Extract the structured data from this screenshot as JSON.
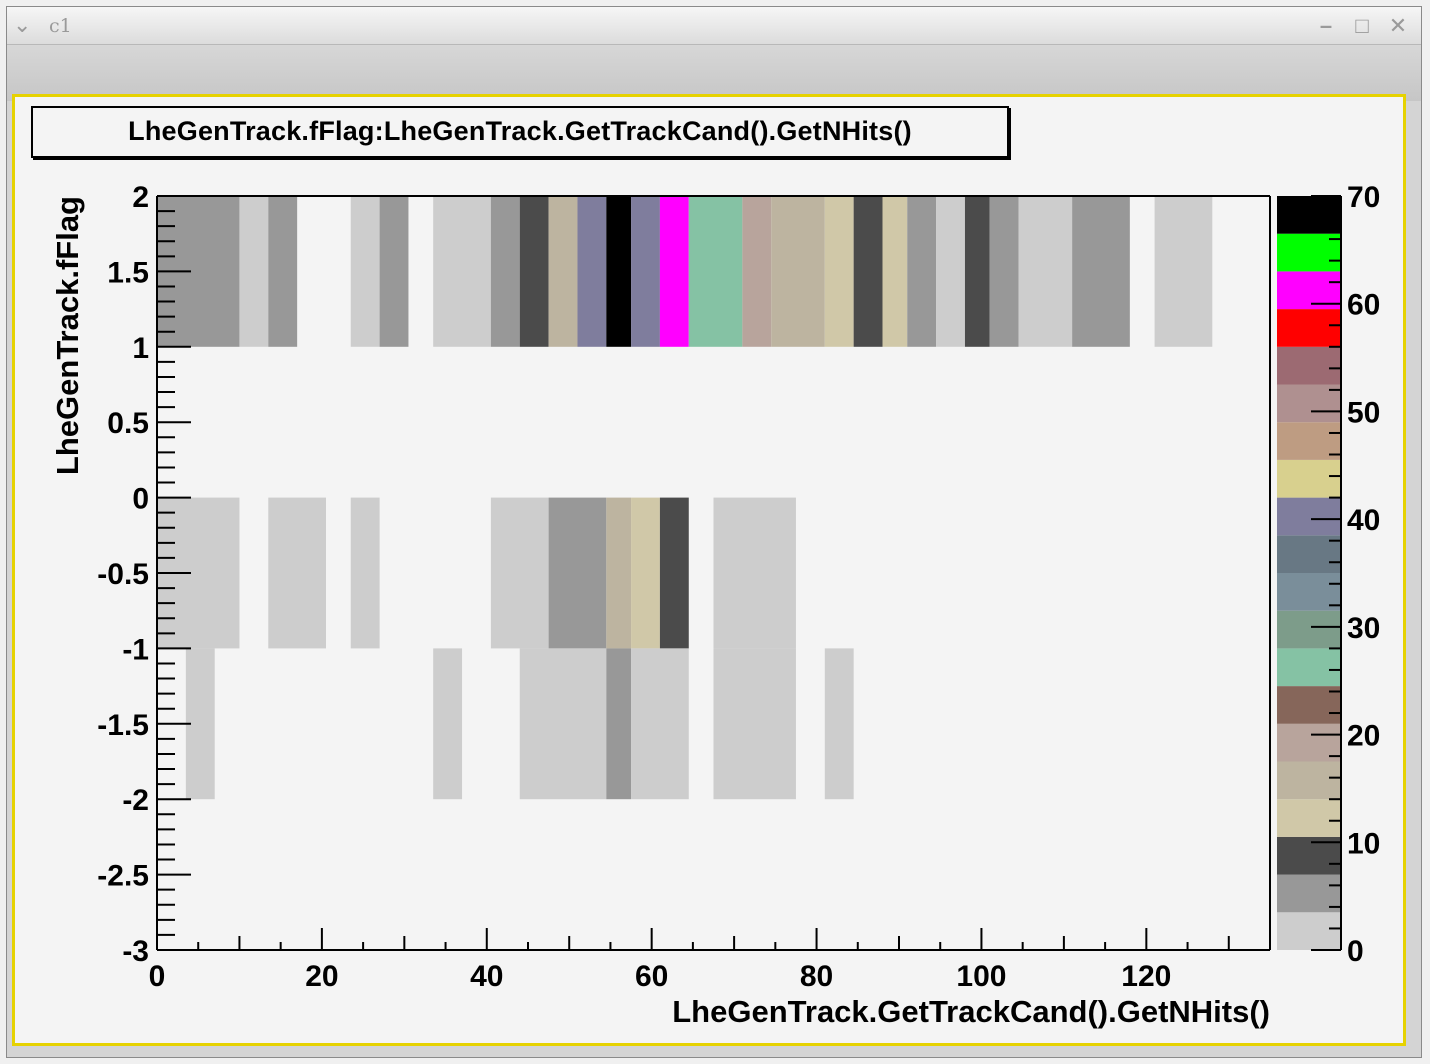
{
  "window": {
    "title": "c1",
    "menu_icon": "chevron-down-icon",
    "controls": [
      "minimize-icon",
      "maximize-icon",
      "close-icon"
    ]
  },
  "colors": {
    "frame_border": "#e6d200",
    "plot_background": "#f4f4f4"
  },
  "chart_data": {
    "type": "heatmap",
    "title": "LheGenTrack.fFlag:LheGenTrack.GetTrackCand().GetNHits()",
    "xlabel": "LheGenTrack.GetTrackCand().GetNHits()",
    "ylabel": "LheGenTrack.fFlag",
    "xlim": [
      0,
      135
    ],
    "ylim": [
      -3,
      2
    ],
    "x_ticks": [
      "0",
      "20",
      "40",
      "60",
      "80",
      "100",
      "120"
    ],
    "y_ticks": [
      "-3",
      "-2.5",
      "-2",
      "-1.5",
      "-1",
      "-0.5",
      "0",
      "0.5",
      "1",
      "1.5",
      "2"
    ],
    "zlim": [
      0,
      70
    ],
    "z_ticks": [
      "0",
      "10",
      "20",
      "30",
      "40",
      "50",
      "60",
      "70"
    ],
    "grid": false,
    "palette": [
      "#cdcdcd",
      "#989898",
      "#4b4b4b",
      "#d0c8a8",
      "#bdb4a0",
      "#b8a49c",
      "#86665a",
      "#85c2a4",
      "#7d9c8a",
      "#7a8e9a",
      "#687884",
      "#7f7d9d",
      "#d8d08e",
      "#be9c82",
      "#af9090",
      "#9c6a72",
      "#ff0000",
      "#ff00ff",
      "#00ff00",
      "#000000"
    ],
    "cells": [
      {
        "x0": 0,
        "x1": 10,
        "y0": 1,
        "y1": 2,
        "z": 5
      },
      {
        "x0": 10,
        "x1": 13.5,
        "y0": 1,
        "y1": 2,
        "z": 2
      },
      {
        "x0": 13.5,
        "x1": 17,
        "y0": 1,
        "y1": 2,
        "z": 5
      },
      {
        "x0": 23.5,
        "x1": 27,
        "y0": 1,
        "y1": 2,
        "z": 2
      },
      {
        "x0": 27,
        "x1": 30.5,
        "y0": 1,
        "y1": 2,
        "z": 5
      },
      {
        "x0": 33.5,
        "x1": 40.5,
        "y0": 1,
        "y1": 2,
        "z": 2
      },
      {
        "x0": 40.5,
        "x1": 44,
        "y0": 1,
        "y1": 2,
        "z": 5
      },
      {
        "x0": 44,
        "x1": 47.5,
        "y0": 1,
        "y1": 2,
        "z": 8
      },
      {
        "x0": 47.5,
        "x1": 51,
        "y0": 1,
        "y1": 2,
        "z": 16
      },
      {
        "x0": 51,
        "x1": 54.5,
        "y0": 1,
        "y1": 2,
        "z": 40
      },
      {
        "x0": 54.5,
        "x1": 57.5,
        "y0": 1,
        "y1": 2,
        "z": 70
      },
      {
        "x0": 57.5,
        "x1": 61,
        "y0": 1,
        "y1": 2,
        "z": 40
      },
      {
        "x0": 61,
        "x1": 64.5,
        "y0": 1,
        "y1": 2,
        "z": 60
      },
      {
        "x0": 64.5,
        "x1": 71,
        "y0": 1,
        "y1": 2,
        "z": 26
      },
      {
        "x0": 71,
        "x1": 74.5,
        "y0": 1,
        "y1": 2,
        "z": 19
      },
      {
        "x0": 74.5,
        "x1": 81,
        "y0": 1,
        "y1": 2,
        "z": 16
      },
      {
        "x0": 81,
        "x1": 84.5,
        "y0": 1,
        "y1": 2,
        "z": 12
      },
      {
        "x0": 84.5,
        "x1": 88,
        "y0": 1,
        "y1": 2,
        "z": 8
      },
      {
        "x0": 88,
        "x1": 91,
        "y0": 1,
        "y1": 2,
        "z": 12
      },
      {
        "x0": 91,
        "x1": 94.5,
        "y0": 1,
        "y1": 2,
        "z": 5
      },
      {
        "x0": 94.5,
        "x1": 98,
        "y0": 1,
        "y1": 2,
        "z": 2
      },
      {
        "x0": 98,
        "x1": 101,
        "y0": 1,
        "y1": 2,
        "z": 8
      },
      {
        "x0": 101,
        "x1": 104.5,
        "y0": 1,
        "y1": 2,
        "z": 5
      },
      {
        "x0": 104.5,
        "x1": 111,
        "y0": 1,
        "y1": 2,
        "z": 2
      },
      {
        "x0": 111,
        "x1": 118,
        "y0": 1,
        "y1": 2,
        "z": 5
      },
      {
        "x0": 121,
        "x1": 128,
        "y0": 1,
        "y1": 2,
        "z": 2
      },
      {
        "x0": 0,
        "x1": 10,
        "y0": -1,
        "y1": 0,
        "z": 2
      },
      {
        "x0": 13.5,
        "x1": 20.5,
        "y0": -1,
        "y1": 0,
        "z": 2
      },
      {
        "x0": 23.5,
        "x1": 27,
        "y0": -1,
        "y1": 0,
        "z": 2
      },
      {
        "x0": 40.5,
        "x1": 47.5,
        "y0": -1,
        "y1": 0,
        "z": 2
      },
      {
        "x0": 47.5,
        "x1": 54.5,
        "y0": -1,
        "y1": 0,
        "z": 5
      },
      {
        "x0": 54.5,
        "x1": 57.5,
        "y0": -1,
        "y1": 0,
        "z": 16
      },
      {
        "x0": 57.5,
        "x1": 61,
        "y0": -1,
        "y1": 0,
        "z": 12
      },
      {
        "x0": 61,
        "x1": 64.5,
        "y0": -1,
        "y1": 0,
        "z": 8
      },
      {
        "x0": 67.5,
        "x1": 77.5,
        "y0": -1,
        "y1": 0,
        "z": 2
      },
      {
        "x0": 3.5,
        "x1": 7,
        "y0": -2,
        "y1": -1,
        "z": 2
      },
      {
        "x0": 33.5,
        "x1": 37,
        "y0": -2,
        "y1": -1,
        "z": 2
      },
      {
        "x0": 44,
        "x1": 54.5,
        "y0": -2,
        "y1": -1,
        "z": 2
      },
      {
        "x0": 54.5,
        "x1": 57.5,
        "y0": -2,
        "y1": -1,
        "z": 5
      },
      {
        "x0": 57.5,
        "x1": 64.5,
        "y0": -2,
        "y1": -1,
        "z": 2
      },
      {
        "x0": 67.5,
        "x1": 77.5,
        "y0": -2,
        "y1": -1,
        "z": 2
      },
      {
        "x0": 81,
        "x1": 84.5,
        "y0": -2,
        "y1": -1,
        "z": 2
      }
    ]
  }
}
